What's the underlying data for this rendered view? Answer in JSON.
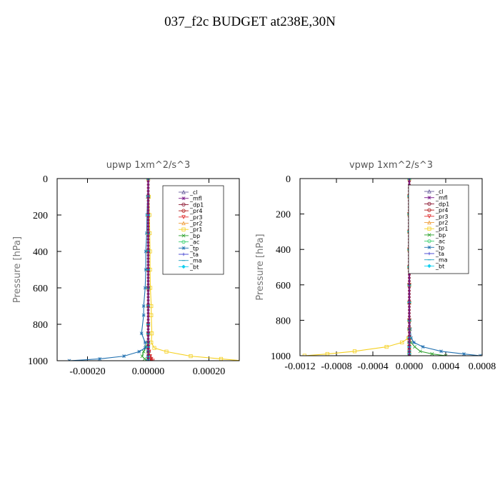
{
  "title": "037_f2c  BUDGET at238E,30N",
  "colors": {
    "cl": "#6a5f9e",
    "mfl": "#7a1a8a",
    "dp1": "#8b1530",
    "pr4": "#b01818",
    "pr3": "#e02c2c",
    "pr2": "#f0a040",
    "pr1": "#f5d020",
    "bp": "#2ca02c",
    "ac": "#3cd070",
    "tp": "#2070b0",
    "ta": "#4040d0",
    "ma": "#20a0c0",
    "bt": "#10d0f0"
  },
  "chart_data": [
    {
      "type": "line",
      "title": "upwp   1xm^2/s^3",
      "ylabel": "Pressure [hPa]",
      "xlim": [
        -0.0003,
        0.0003
      ],
      "ylim": [
        1000,
        0
      ],
      "y_inverted": true,
      "xticks": [
        -0.0002,
        0.0,
        0.0002
      ],
      "xtick_labels": [
        "-0.00020",
        "0.00000",
        "0.00020"
      ],
      "yticks": [
        0,
        200,
        400,
        600,
        800,
        1000
      ],
      "ytick_labels": [
        "0",
        "200",
        "400",
        "600",
        "800",
        "1000"
      ],
      "legend": [
        "_cl",
        "_mfl",
        "_dp1",
        "_pr4",
        "_pr3",
        "_pr2",
        "_pr1",
        "_bp",
        "_ac",
        "_tp",
        "_ta",
        "_ma",
        "_bt"
      ],
      "legend_position": "top-right",
      "series": [
        {
          "name": "_cl",
          "key": "cl",
          "x": [
            0,
            0,
            0,
            0,
            0,
            0,
            0,
            0,
            0,
            0,
            0,
            0,
            0,
            0,
            0,
            0
          ],
          "y": [
            0,
            100,
            200,
            300,
            400,
            500,
            600,
            700,
            800,
            850,
            900,
            925,
            950,
            975,
            990,
            1000
          ]
        },
        {
          "name": "_mfl",
          "key": "mfl",
          "x": [
            0,
            0,
            0,
            0,
            0,
            0,
            0,
            0,
            0,
            0,
            0,
            0,
            0,
            0,
            0,
            0
          ],
          "y": [
            0,
            100,
            200,
            300,
            400,
            500,
            600,
            700,
            800,
            850,
            900,
            925,
            950,
            975,
            990,
            1000
          ]
        },
        {
          "name": "_dp1",
          "key": "dp1",
          "x": [
            0,
            0,
            0,
            0,
            0,
            0,
            0,
            0,
            0,
            0,
            0,
            0,
            0,
            5e-06,
            8e-06,
            1e-05
          ],
          "y": [
            0,
            100,
            200,
            300,
            400,
            500,
            600,
            700,
            800,
            850,
            900,
            925,
            950,
            975,
            990,
            1000
          ]
        },
        {
          "name": "_pr4",
          "key": "pr4",
          "x": [
            0,
            0,
            0,
            0,
            0,
            0,
            0,
            0,
            0,
            0,
            0,
            0,
            2e-06,
            4e-06,
            6e-06,
            8e-06
          ],
          "y": [
            0,
            100,
            200,
            300,
            400,
            500,
            600,
            700,
            800,
            850,
            900,
            925,
            950,
            975,
            990,
            1000
          ]
        },
        {
          "name": "_pr3",
          "key": "pr3",
          "x": [
            0,
            0,
            0,
            0,
            0,
            0,
            0,
            0,
            0,
            0,
            0,
            0,
            3e-06,
            6e-06,
            1e-05,
            1.5e-05
          ],
          "y": [
            0,
            100,
            200,
            300,
            400,
            500,
            600,
            700,
            800,
            850,
            900,
            925,
            950,
            975,
            990,
            1000
          ]
        },
        {
          "name": "_pr2",
          "key": "pr2",
          "x": [
            0,
            0,
            0,
            0,
            0,
            0,
            0,
            0,
            0,
            0,
            0,
            0,
            0,
            0,
            0,
            0
          ],
          "y": [
            0,
            100,
            200,
            300,
            400,
            500,
            600,
            700,
            800,
            850,
            900,
            925,
            950,
            975,
            990,
            1000
          ]
        },
        {
          "name": "_pr1",
          "key": "pr1",
          "x": [
            0,
            2e-06,
            4e-06,
            5e-06,
            6e-06,
            6e-06,
            7e-06,
            1e-05,
            1e-05,
            1.2e-05,
            1e-05,
            2e-05,
            6e-05,
            0.00014,
            0.00024,
            0.00031
          ],
          "y": [
            0,
            100,
            200,
            300,
            400,
            500,
            600,
            700,
            750,
            850,
            900,
            930,
            950,
            975,
            990,
            1000
          ]
        },
        {
          "name": "_bp",
          "key": "bp",
          "x": [
            0,
            0,
            0,
            0,
            0,
            0,
            0,
            0,
            0,
            0,
            0,
            -8e-06,
            -1.5e-05,
            -2e-05,
            -1.2e-05,
            0
          ],
          "y": [
            0,
            100,
            200,
            300,
            400,
            500,
            600,
            700,
            800,
            850,
            900,
            925,
            950,
            975,
            990,
            1000
          ]
        },
        {
          "name": "_ac",
          "key": "ac",
          "x": [
            0,
            0,
            0,
            0,
            0,
            0,
            0,
            0,
            0,
            0,
            0,
            0,
            0,
            0,
            0,
            0
          ],
          "y": [
            0,
            100,
            200,
            300,
            400,
            500,
            600,
            700,
            800,
            850,
            900,
            925,
            950,
            975,
            990,
            1000
          ]
        },
        {
          "name": "_tp",
          "key": "tp",
          "x": [
            0,
            -2e-06,
            -4e-06,
            -5e-06,
            -8e-06,
            -8e-06,
            -1e-05,
            -1.5e-05,
            -1.5e-05,
            -2.2e-05,
            -1e-05,
            -1e-05,
            -3e-05,
            -8e-05,
            -0.00016,
            -0.00026
          ],
          "y": [
            0,
            100,
            200,
            300,
            400,
            500,
            600,
            700,
            750,
            850,
            900,
            930,
            950,
            975,
            990,
            1000
          ]
        },
        {
          "name": "_ta",
          "key": "ta",
          "x": [
            0,
            0,
            0,
            0,
            0,
            0,
            0,
            0,
            0,
            0,
            0,
            0,
            0,
            0,
            0,
            0
          ],
          "y": [
            0,
            100,
            200,
            300,
            400,
            500,
            600,
            700,
            800,
            850,
            900,
            925,
            950,
            975,
            990,
            1000
          ]
        },
        {
          "name": "_ma",
          "key": "ma",
          "x": [
            0,
            0,
            0,
            0,
            0,
            0,
            0,
            0,
            0,
            0,
            0,
            0,
            0,
            0,
            0,
            0
          ],
          "y": [
            0,
            100,
            200,
            300,
            400,
            500,
            600,
            700,
            800,
            850,
            900,
            925,
            950,
            975,
            990,
            1000
          ]
        },
        {
          "name": "_bt",
          "key": "bt",
          "x": [
            0,
            0,
            0,
            0,
            0,
            0,
            0,
            0,
            0,
            0,
            0,
            0,
            0,
            0,
            0,
            0
          ],
          "y": [
            0,
            100,
            200,
            300,
            400,
            500,
            600,
            700,
            800,
            850,
            900,
            925,
            950,
            975,
            990,
            1000
          ]
        }
      ]
    },
    {
      "type": "line",
      "title": "vpwp   1xm^2/s^3",
      "ylabel": "Pressure [hPa]",
      "xlim": [
        -0.0012,
        0.0008
      ],
      "ylim": [
        1000,
        0
      ],
      "y_inverted": true,
      "xticks": [
        -0.0012,
        -0.0008,
        -0.0004,
        0.0,
        0.0004,
        0.0008
      ],
      "xtick_labels": [
        "-0.0012",
        "-0.0008",
        "-0.0004",
        "0.0000",
        "0.0004",
        "0.0008"
      ],
      "yticks": [
        0,
        200,
        400,
        600,
        800,
        1000
      ],
      "ytick_labels": [
        "0",
        "200",
        "400",
        "600",
        "800",
        "1000"
      ],
      "legend": [
        "_cl",
        "_mfl",
        "_dp1",
        "_pr4",
        "_pr3",
        "_pr2",
        "_pr1",
        "_bp",
        "_ac",
        "_tp",
        "_ta",
        "_ma",
        "_bt"
      ],
      "legend_position": "top-right",
      "series": [
        {
          "name": "_cl",
          "key": "cl",
          "x": [
            0,
            0,
            0,
            0,
            0,
            0,
            0,
            0,
            0,
            0,
            0,
            0,
            0,
            0,
            0,
            0
          ],
          "y": [
            0,
            100,
            200,
            300,
            400,
            500,
            600,
            700,
            800,
            850,
            900,
            925,
            950,
            975,
            990,
            1000
          ]
        },
        {
          "name": "_mfl",
          "key": "mfl",
          "x": [
            0,
            0,
            0,
            0,
            0,
            0,
            0,
            0,
            0,
            0,
            0,
            0,
            0,
            0,
            0,
            0
          ],
          "y": [
            0,
            100,
            200,
            300,
            400,
            500,
            600,
            700,
            800,
            850,
            900,
            925,
            950,
            975,
            990,
            1000
          ]
        },
        {
          "name": "_dp1",
          "key": "dp1",
          "x": [
            0,
            0,
            0,
            0,
            0,
            0,
            0,
            0,
            0,
            0,
            0,
            0,
            0,
            0,
            0,
            0
          ],
          "y": [
            0,
            100,
            200,
            300,
            400,
            500,
            600,
            700,
            800,
            850,
            900,
            925,
            950,
            975,
            990,
            1000
          ]
        },
        {
          "name": "_pr4",
          "key": "pr4",
          "x": [
            0,
            0,
            0,
            0,
            0,
            0,
            0,
            0,
            0,
            0,
            0,
            0,
            0,
            0,
            0,
            0
          ],
          "y": [
            0,
            100,
            200,
            300,
            400,
            500,
            600,
            700,
            800,
            850,
            900,
            925,
            950,
            975,
            990,
            1000
          ]
        },
        {
          "name": "_pr3",
          "key": "pr3",
          "x": [
            0,
            0,
            0,
            0,
            0,
            0,
            0,
            0,
            0,
            0,
            0,
            0,
            0,
            0,
            0,
            0
          ],
          "y": [
            0,
            100,
            200,
            300,
            400,
            500,
            600,
            700,
            800,
            850,
            900,
            925,
            950,
            975,
            990,
            1000
          ]
        },
        {
          "name": "_pr2",
          "key": "pr2",
          "x": [
            0,
            0,
            0,
            0,
            0,
            0,
            0,
            0,
            0,
            0,
            0,
            0,
            0,
            0,
            0,
            0
          ],
          "y": [
            0,
            100,
            200,
            300,
            400,
            500,
            600,
            700,
            800,
            850,
            900,
            925,
            950,
            975,
            990,
            1000
          ]
        },
        {
          "name": "_pr1",
          "key": "pr1",
          "x": [
            0,
            0,
            0,
            0,
            0,
            0,
            0,
            0,
            0,
            0,
            -1e-05,
            -8e-05,
            -0.00025,
            -0.0006,
            -0.0009,
            -0.00115
          ],
          "y": [
            0,
            100,
            200,
            300,
            400,
            500,
            600,
            700,
            800,
            850,
            900,
            925,
            950,
            975,
            990,
            1000
          ]
        },
        {
          "name": "_bp",
          "key": "bp",
          "x": [
            0,
            0,
            0,
            0,
            0,
            0,
            0,
            0,
            0,
            0,
            0,
            2e-05,
            6e-05,
            0.00012,
            0.00025,
            0.0004
          ],
          "y": [
            0,
            100,
            200,
            300,
            400,
            500,
            600,
            700,
            800,
            850,
            900,
            925,
            950,
            975,
            990,
            1000
          ]
        },
        {
          "name": "_ac",
          "key": "ac",
          "x": [
            0,
            0,
            0,
            0,
            0,
            0,
            0,
            0,
            0,
            0,
            0,
            0,
            0,
            0,
            0,
            0
          ],
          "y": [
            0,
            100,
            200,
            300,
            400,
            500,
            600,
            700,
            800,
            850,
            900,
            925,
            950,
            975,
            990,
            1000
          ]
        },
        {
          "name": "_tp",
          "key": "tp",
          "x": [
            0,
            0,
            0,
            0,
            0,
            0,
            0,
            0,
            5e-06,
            1e-05,
            2e-05,
            5e-05,
            0.00015,
            0.00035,
            0.0006,
            0.00078
          ],
          "y": [
            0,
            100,
            200,
            300,
            400,
            500,
            600,
            700,
            800,
            850,
            900,
            925,
            950,
            975,
            990,
            1000
          ]
        },
        {
          "name": "_ta",
          "key": "ta",
          "x": [
            0,
            0,
            0,
            0,
            0,
            0,
            0,
            0,
            0,
            0,
            0,
            0,
            0,
            0,
            0,
            0
          ],
          "y": [
            0,
            100,
            200,
            300,
            400,
            500,
            600,
            700,
            800,
            850,
            900,
            925,
            950,
            975,
            990,
            1000
          ]
        },
        {
          "name": "_ma",
          "key": "ma",
          "x": [
            0,
            0,
            0,
            0,
            0,
            0,
            0,
            0,
            0,
            0,
            0,
            0,
            0,
            0,
            0,
            0
          ],
          "y": [
            0,
            100,
            200,
            300,
            400,
            500,
            600,
            700,
            800,
            850,
            900,
            925,
            950,
            975,
            990,
            1000
          ]
        },
        {
          "name": "_bt",
          "key": "bt",
          "x": [
            0,
            0,
            0,
            0,
            0,
            0,
            0,
            0,
            0,
            0,
            0,
            0,
            0,
            0,
            0,
            0
          ],
          "y": [
            0,
            100,
            200,
            300,
            400,
            500,
            600,
            700,
            800,
            850,
            900,
            925,
            950,
            975,
            990,
            1000
          ]
        }
      ]
    }
  ]
}
